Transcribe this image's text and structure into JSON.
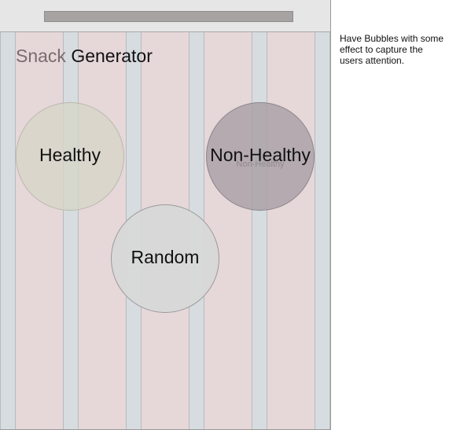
{
  "app": {
    "title_prefix": "Snack",
    "title_suffix": " Generator"
  },
  "bubbles": {
    "healthy_label": "Healthy",
    "non_healthy_label": "Non-Healthy",
    "non_healthy_ghost_label": "Non-Healthy",
    "random_label": "Random"
  },
  "annotation": {
    "text": "Have Bubbles with some effect to capture the users attention."
  },
  "colors": {
    "column": "#e6d7d9",
    "gutter": "#d6dcdf",
    "healthy_bubble": "#d6d6c8",
    "non_healthy_bubble": "#a8a0a6",
    "random_bubble": "#d8d8d8"
  }
}
